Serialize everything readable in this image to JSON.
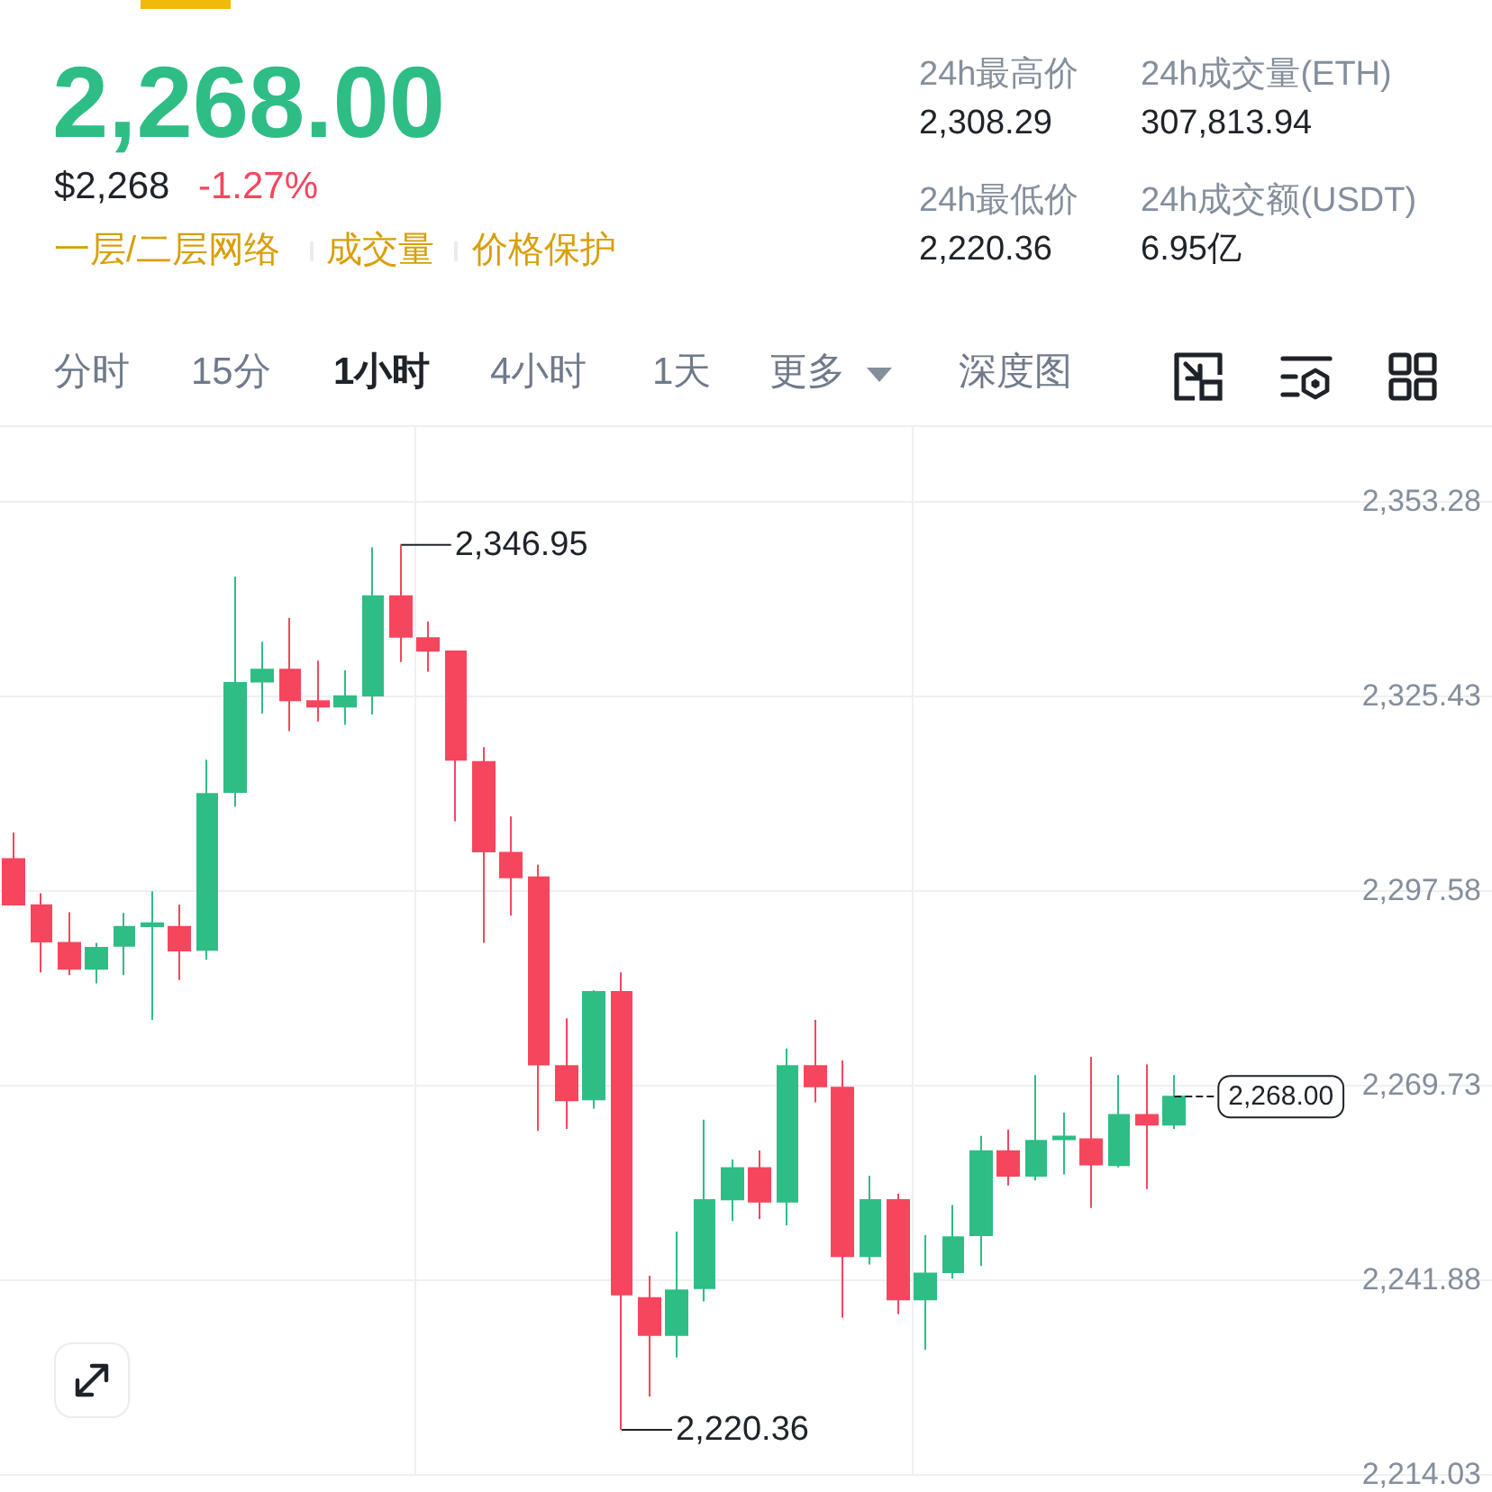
{
  "chart_data": {
    "type": "candlestick",
    "title": "2,268.00",
    "annotations": [
      "$2,268",
      "-1.27%",
      "一层/二层网络",
      "成交量",
      "价格保护",
      "24h最高价",
      "2,308.29",
      "24h成交量(ETH)",
      "307,813.94",
      "24h最低价",
      "2,220.36",
      "24h成交额(USDT)",
      "6.95亿",
      "分时",
      "15分",
      "1小时",
      "4小时",
      "1天",
      "更多",
      "深度图",
      "2,346.95",
      "2,220.36"
    ],
    "categories": [
      null,
      null,
      null,
      null,
      null,
      null,
      null,
      null,
      null,
      null,
      null,
      null,
      null,
      null,
      null,
      null,
      null,
      null,
      null,
      null,
      null,
      null,
      null,
      null,
      null,
      null,
      null,
      null,
      null,
      null,
      null,
      null,
      null,
      null,
      null,
      null,
      null,
      null,
      null,
      null,
      null,
      null,
      null,
      null,
      null,
      null,
      null,
      null,
      null,
      null,
      null,
      null,
      null,
      null
    ],
    "ohlc": [
      [
        2302.0,
        2305.8,
        2295.5,
        2295.5
      ],
      [
        2295.4,
        2297.1,
        2285.8,
        2290.2
      ],
      [
        2290.0,
        2294.4,
        2285.4,
        2286.3
      ],
      [
        2286.3,
        2290.0,
        2284.2,
        2289.3
      ],
      [
        2289.6,
        2294.3,
        2285.4,
        2292.3
      ],
      [
        2292.4,
        2297.4,
        2279.0,
        2292.8
      ],
      [
        2292.3,
        2295.5,
        2284.7,
        2288.9
      ],
      [
        2289.0,
        2316.2,
        2287.6,
        2311.3
      ],
      [
        2311.6,
        2342.4,
        2309.5,
        2327.2
      ],
      [
        2327.4,
        2333.1,
        2322.8,
        2329.1
      ],
      [
        2329.1,
        2336.5,
        2320.3,
        2324.7
      ],
      [
        2324.6,
        2330.4,
        2321.7,
        2323.8
      ],
      [
        2323.8,
        2329.0,
        2321.2,
        2325.3
      ],
      [
        2325.4,
        2346.6,
        2322.7,
        2339.6
      ],
      [
        2339.6,
        2346.95,
        2330.2,
        2333.8
      ],
      [
        2333.6,
        2336.0,
        2328.8,
        2331.8
      ],
      [
        2331.7,
        2331.8,
        2307.4,
        2316.2
      ],
      [
        2315.9,
        2318.0,
        2290.0,
        2303.1
      ],
      [
        2302.9,
        2308.1,
        2293.9,
        2299.4
      ],
      [
        2299.4,
        2301.2,
        2263.1,
        2272.6
      ],
      [
        2272.4,
        2279.2,
        2263.4,
        2267.5
      ],
      [
        2267.6,
        2283.2,
        2266.3,
        2283.0
      ],
      [
        2283.0,
        2285.8,
        2220.36,
        2239.7
      ],
      [
        2239.2,
        2242.4,
        2225.1,
        2233.9
      ],
      [
        2233.9,
        2248.7,
        2230.7,
        2240.3
      ],
      [
        2240.6,
        2264.7,
        2238.7,
        2253.2
      ],
      [
        2253.3,
        2259.0,
        2250.2,
        2257.8
      ],
      [
        2257.8,
        2260.3,
        2250.5,
        2253.0
      ],
      [
        2253.0,
        2274.9,
        2249.6,
        2272.4
      ],
      [
        2272.4,
        2279.0,
        2267.2,
        2269.5
      ],
      [
        2269.3,
        2273.2,
        2236.4,
        2245.2
      ],
      [
        2245.2,
        2256.7,
        2244.0,
        2253.2
      ],
      [
        2253.2,
        2254.1,
        2236.9,
        2239.0
      ],
      [
        2239.0,
        2248.2,
        2231.8,
        2242.7
      ],
      [
        2242.9,
        2252.5,
        2242.0,
        2247.9
      ],
      [
        2248.2,
        2262.4,
        2243.8,
        2260.2
      ],
      [
        2260.2,
        2263.3,
        2255.3,
        2256.7
      ],
      [
        2256.7,
        2271.1,
        2256.0,
        2261.7
      ],
      [
        2261.9,
        2265.7,
        2256.9,
        2262.3
      ],
      [
        2261.9,
        2273.7,
        2252.1,
        2258.3
      ],
      [
        2258.2,
        2271.1,
        2257.9,
        2265.4
      ],
      [
        2265.4,
        2272.6,
        2254.8,
        2264.0
      ],
      [
        2264.0,
        2271.1,
        2263.4,
        2268.0
      ],
      null,
      null,
      null,
      null,
      null,
      null,
      null,
      null,
      null,
      null,
      null
    ],
    "colors": [
      "#f6465d",
      "#f6465d",
      "#f6465d",
      "#2ebd85",
      "#2ebd85",
      "#2ebd85",
      "#f6465d",
      "#2ebd85",
      "#2ebd85",
      "#2ebd85",
      "#f6465d",
      "#f6465d",
      "#2ebd85",
      "#2ebd85",
      "#f6465d",
      "#f6465d",
      "#f6465d",
      "#f6465d",
      "#f6465d",
      "#f6465d",
      "#f6465d",
      "#2ebd85",
      "#f6465d",
      "#f6465d",
      "#2ebd85",
      "#2ebd85",
      "#2ebd85",
      "#f6465d",
      "#2ebd85",
      "#f6465d",
      "#f6465d",
      "#2ebd85",
      "#f6465d",
      "#2ebd85",
      "#2ebd85",
      "#2ebd85",
      "#f6465d",
      "#2ebd85",
      "#2ebd85",
      "#f6465d",
      "#2ebd85",
      "#f6465d",
      "#2ebd85",
      null,
      null,
      null,
      null,
      null,
      null,
      null,
      null,
      null,
      null,
      null
    ],
    "ylim": [
      2214.03,
      2363.8
    ],
    "yticks": [
      {
        "value": 2214.03,
        "label": "2,214.03"
      },
      {
        "value": 2241.88,
        "label": "2,241.88"
      },
      {
        "value": 2269.73,
        "label": "2,269.73"
      },
      {
        "value": 2297.58,
        "label": "2,297.58"
      },
      {
        "value": 2325.43,
        "label": "2,325.43"
      },
      {
        "value": 2353.28,
        "label": "2,353.28"
      }
    ],
    "ref_lines": [
      {
        "axis": "y",
        "value": 2268.0,
        "label": "2,268.00",
        "line_style": "dashed",
        "color": "#1e2329"
      }
    ],
    "grid": true,
    "tick_labels": "y"
  }
}
